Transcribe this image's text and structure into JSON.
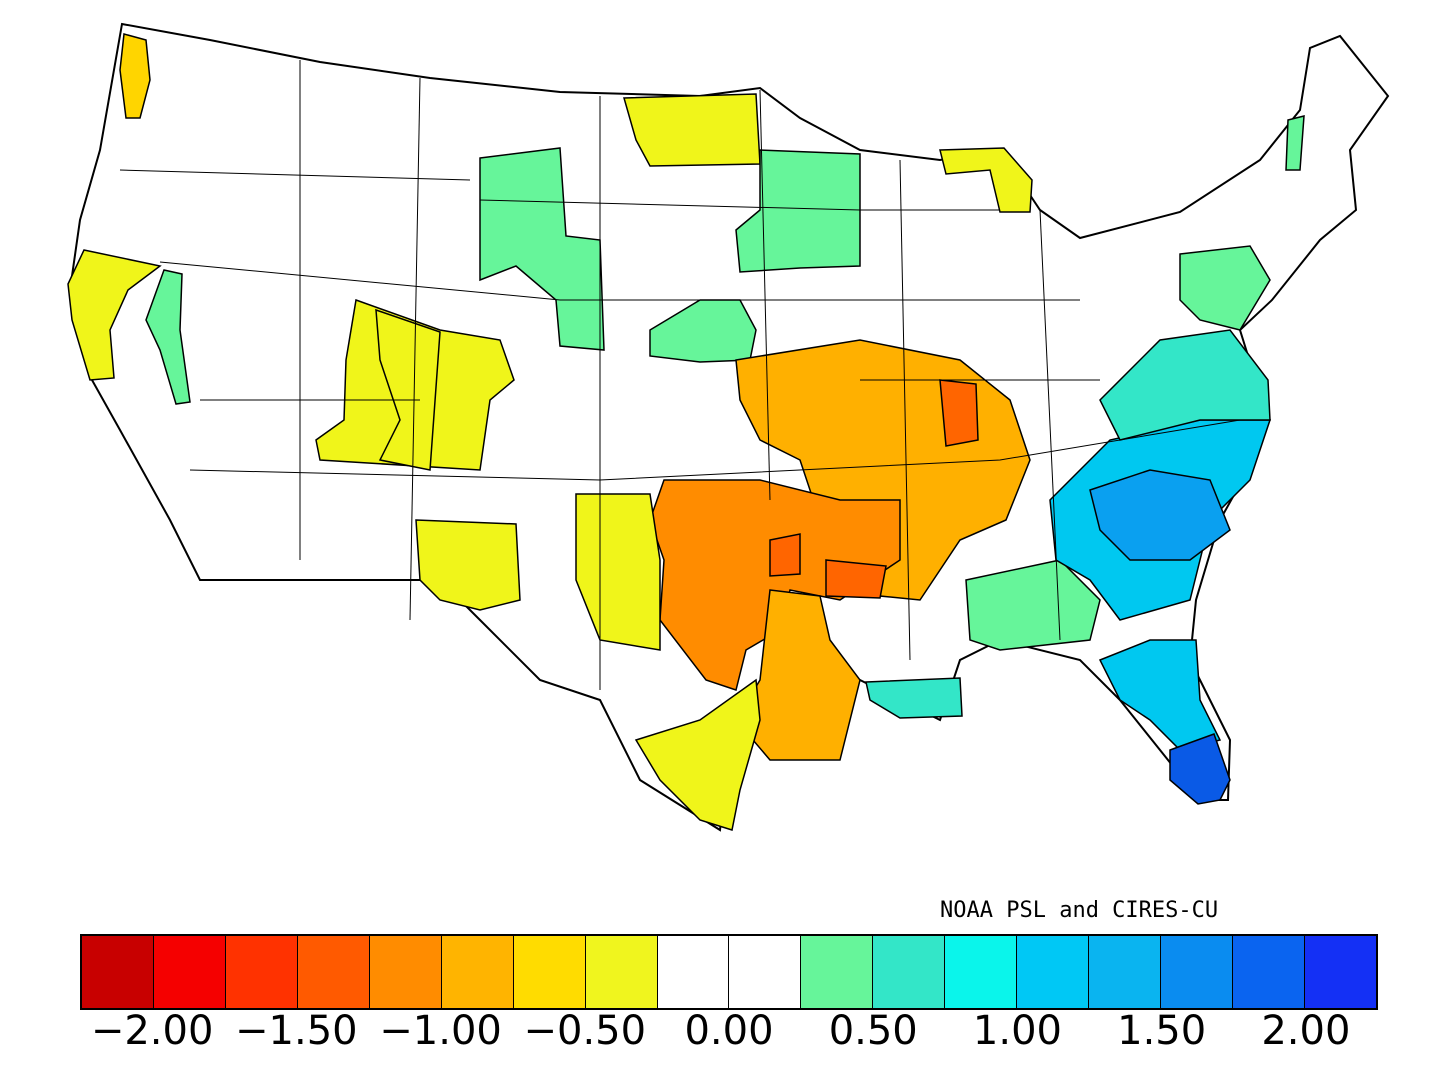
{
  "map": {
    "credit": "NOAA PSL and CIRES-CU",
    "region": "Contiguous United States climate divisions",
    "divisions": [
      {
        "name": "western-washington-division",
        "color": "#ffd500"
      },
      {
        "name": "northern-california-coast-division",
        "color": "#f0f51a"
      },
      {
        "name": "sierra-division",
        "color": "#66f59a"
      },
      {
        "name": "great-basin-divisions",
        "color": "#f0f51a"
      },
      {
        "name": "utah-divisions",
        "color": "#f0f51a"
      },
      {
        "name": "montana-wyoming-divisions",
        "color": "#66f59a"
      },
      {
        "name": "north-dakota-minnesota-divisions",
        "color": "#f0f51a"
      },
      {
        "name": "upper-midwest-divisions",
        "color": "#66f59a"
      },
      {
        "name": "nebraska-divisions",
        "color": "#66f59a"
      },
      {
        "name": "michigan-divisions",
        "color": "#f0f51a"
      },
      {
        "name": "missouri-arkansas-divisions",
        "color": "#ffb000"
      },
      {
        "name": "oklahoma-texas-divisions",
        "color": "#ff8c00"
      },
      {
        "name": "red-river-divisions",
        "color": "#ff6500"
      },
      {
        "name": "new-mexico-divisions",
        "color": "#f0f51a"
      },
      {
        "name": "west-texas-divisions",
        "color": "#f0f51a"
      },
      {
        "name": "east-texas-louisiana-divisions",
        "color": "#ffb000"
      },
      {
        "name": "south-texas-divisions",
        "color": "#f0f51a"
      },
      {
        "name": "louisiana-coast-divisions",
        "color": "#33e6c8"
      },
      {
        "name": "gulf-coast-divisions",
        "color": "#66f59a"
      },
      {
        "name": "georgia-carolina-divisions",
        "color": "#00c8f0"
      },
      {
        "name": "south-carolina-divisions",
        "color": "#0aa0f0"
      },
      {
        "name": "florida-peninsula-division",
        "color": "#00c8f0"
      },
      {
        "name": "south-florida-division",
        "color": "#0a5ae6"
      },
      {
        "name": "virginia-divisions",
        "color": "#33e6c8"
      },
      {
        "name": "mid-atlantic-divisions",
        "color": "#66f59a"
      },
      {
        "name": "new-england-division",
        "color": "#66f59a"
      }
    ]
  },
  "legend": {
    "colors": [
      "#c80000",
      "#f50000",
      "#ff3200",
      "#ff5a00",
      "#ff8c00",
      "#ffb400",
      "#ffdc00",
      "#f0f51e",
      "#ffffff",
      "#ffffff",
      "#66f59a",
      "#33e6c8",
      "#0af5eb",
      "#00c8f5",
      "#0ab4f0",
      "#0a8cf0",
      "#0a64f0",
      "#1430f5"
    ],
    "ticks": [
      "−2.00",
      "−1.50",
      "−1.00",
      "−0.50",
      "0.00",
      "0.50",
      "1.00",
      "1.50",
      "2.00"
    ]
  }
}
